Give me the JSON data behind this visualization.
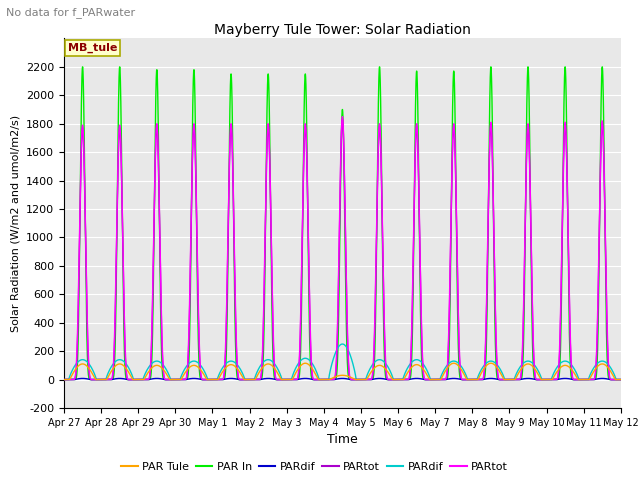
{
  "title": "Mayberry Tule Tower: Solar Radiation",
  "subtitle": "No data for f_PARwater",
  "xlabel": "Time",
  "ylabel": "Solar Radiation (W/m2 and umol/m2/s)",
  "ylim": [
    -200,
    2400
  ],
  "yticks": [
    -200,
    0,
    200,
    400,
    600,
    800,
    1000,
    1200,
    1400,
    1600,
    1800,
    2000,
    2200
  ],
  "xtick_labels": [
    "Apr 27",
    "Apr 28",
    "Apr 29",
    "Apr 30",
    "May 1",
    "May 2",
    "May 3",
    "May 4",
    "May 5",
    "May 6",
    "May 7",
    "May 8",
    "May 9",
    "May 10",
    "May 11",
    "May 12"
  ],
  "legend_entries": [
    {
      "label": "PAR Tule",
      "color": "#FFA500"
    },
    {
      "label": "PAR In",
      "color": "#00DD00"
    },
    {
      "label": "PARdif",
      "color": "#0000CC"
    },
    {
      "label": "PARtot",
      "color": "#AA00AA"
    },
    {
      "label": "PARdif",
      "color": "#00CCCC"
    },
    {
      "label": "PARtot",
      "color": "#FF00FF"
    }
  ],
  "box_label": "MB_tule",
  "background_color": "#E8E8E8",
  "grid_color": "#CCCCCC",
  "fig_bg": "#FFFFFF",
  "green_peaks": [
    2200,
    2200,
    2180,
    2180,
    2150,
    2150,
    2150,
    1900,
    2200,
    2170,
    2170,
    2200,
    2200,
    2200,
    2200
  ],
  "magenta_peaks": [
    1790,
    1790,
    1800,
    1800,
    1800,
    1800,
    1800,
    1850,
    1800,
    1800,
    1800,
    1810,
    1800,
    1810,
    1820
  ],
  "orange_peaks": [
    110,
    110,
    100,
    100,
    105,
    110,
    115,
    30,
    100,
    105,
    115,
    115,
    110,
    100,
    110
  ],
  "cyan_peaks": [
    140,
    140,
    130,
    130,
    130,
    140,
    150,
    250,
    140,
    140,
    130,
    130,
    130,
    130,
    130
  ]
}
